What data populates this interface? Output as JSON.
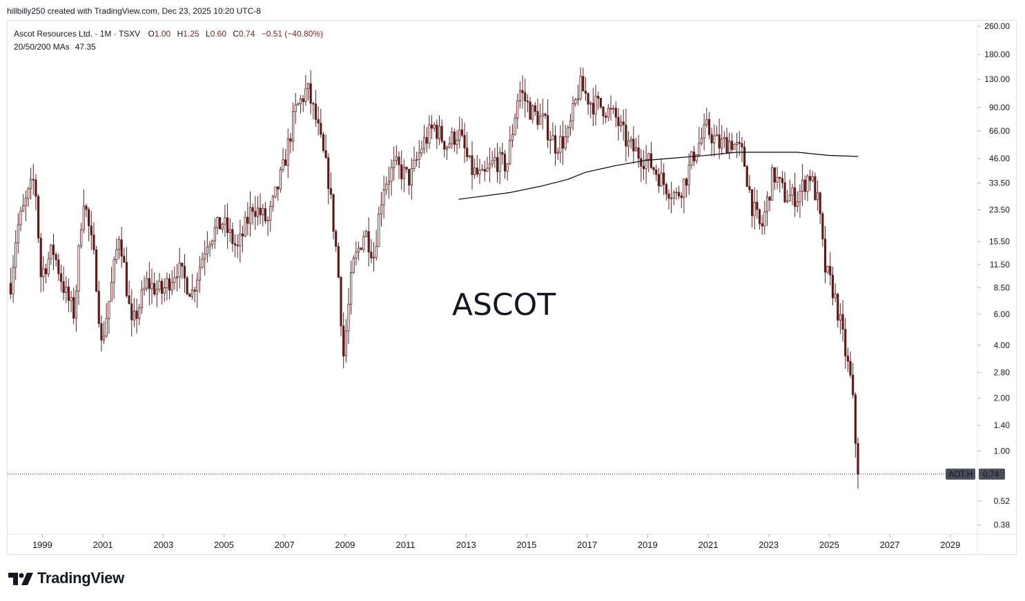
{
  "header": {
    "credit": "hillbilly250 created with TradingView.com, Dec 23, 2025 10:20 UTC-8"
  },
  "legend": {
    "symbol": "Ascot Resources Ltd. · 1M · TSXV",
    "o_label": "O",
    "o_value": "1.00",
    "h_label": "H",
    "h_value": "1.25",
    "l_label": "L",
    "l_value": "0.60",
    "c_label": "C",
    "c_value": "0.74",
    "change": "−0.51 (−40.80%)",
    "ma_label": "20/50/200 MAs",
    "ma_value": "47.35"
  },
  "watermark": "ASCOT",
  "price_tag": {
    "ticker": "AOT.H",
    "price": "0.74"
  },
  "brand": "TradingView",
  "colors": {
    "candle": "#5d1a1a",
    "ma": "#000000",
    "tag": "#4a4e59",
    "grid": "#e0e3eb"
  },
  "chart_data": {
    "type": "candlestick",
    "scale": "log",
    "ylim": [
      0.34,
      280
    ],
    "xlim": [
      1997.9,
      2029.9
    ],
    "y_ticks": [
      "260.00",
      "180.00",
      "130.00",
      "90.00",
      "66.00",
      "46.00",
      "33.50",
      "23.50",
      "15.50",
      "11.50",
      "8.50",
      "6.00",
      "4.00",
      "2.80",
      "2.00",
      "1.40",
      "1.00",
      "0.52",
      "0.38"
    ],
    "x_ticks": [
      "1999",
      "2001",
      "2003",
      "2005",
      "2007",
      "2009",
      "2011",
      "2013",
      "2015",
      "2017",
      "2019",
      "2021",
      "2023",
      "2025",
      "2027",
      "2029"
    ],
    "last_price": 0.74,
    "price_keypoints": [
      [
        1998.0,
        9
      ],
      [
        1998.2,
        18
      ],
      [
        1998.5,
        26
      ],
      [
        1998.8,
        36
      ],
      [
        1999.0,
        10
      ],
      [
        1999.4,
        14
      ],
      [
        1999.8,
        8
      ],
      [
        2000.1,
        6
      ],
      [
        2000.4,
        29
      ],
      [
        2000.8,
        11
      ],
      [
        2001.0,
        4
      ],
      [
        2001.3,
        8
      ],
      [
        2001.6,
        18
      ],
      [
        2002.0,
        5
      ],
      [
        2002.5,
        9
      ],
      [
        2003.0,
        8
      ],
      [
        2003.5,
        11
      ],
      [
        2004.0,
        8
      ],
      [
        2004.5,
        16
      ],
      [
        2005.0,
        20
      ],
      [
        2005.5,
        14
      ],
      [
        2006.0,
        25
      ],
      [
        2006.5,
        20
      ],
      [
        2007.0,
        40
      ],
      [
        2007.4,
        85
      ],
      [
        2007.8,
        115
      ],
      [
        2008.1,
        75
      ],
      [
        2008.5,
        35
      ],
      [
        2008.8,
        12
      ],
      [
        2009.0,
        3.5
      ],
      [
        2009.3,
        11
      ],
      [
        2009.7,
        18
      ],
      [
        2010.0,
        13
      ],
      [
        2010.3,
        32
      ],
      [
        2010.7,
        42
      ],
      [
        2011.2,
        35
      ],
      [
        2011.6,
        55
      ],
      [
        2012.0,
        70
      ],
      [
        2012.4,
        55
      ],
      [
        2012.8,
        65
      ],
      [
        2013.2,
        40
      ],
      [
        2013.6,
        35
      ],
      [
        2014.0,
        45
      ],
      [
        2014.4,
        42
      ],
      [
        2014.8,
        115
      ],
      [
        2015.2,
        85
      ],
      [
        2015.6,
        75
      ],
      [
        2016.0,
        55
      ],
      [
        2016.4,
        60
      ],
      [
        2016.8,
        120
      ],
      [
        2017.2,
        95
      ],
      [
        2017.6,
        90
      ],
      [
        2018.0,
        78
      ],
      [
        2018.4,
        55
      ],
      [
        2018.8,
        48
      ],
      [
        2019.2,
        42
      ],
      [
        2019.6,
        33
      ],
      [
        2020.0,
        28
      ],
      [
        2020.3,
        35
      ],
      [
        2020.6,
        50
      ],
      [
        2021.0,
        68
      ],
      [
        2021.4,
        55
      ],
      [
        2021.8,
        58
      ],
      [
        2022.2,
        48
      ],
      [
        2022.5,
        25
      ],
      [
        2022.8,
        18
      ],
      [
        2023.2,
        38
      ],
      [
        2023.6,
        28
      ],
      [
        2024.0,
        28
      ],
      [
        2024.4,
        38
      ],
      [
        2024.7,
        25
      ],
      [
        2024.9,
        11
      ],
      [
        2025.2,
        8
      ],
      [
        2025.4,
        5.5
      ],
      [
        2025.6,
        3.5
      ],
      [
        2025.8,
        2.3
      ],
      [
        2025.9,
        1.25
      ],
      [
        2026.0,
        0.74
      ]
    ],
    "ma_keypoints": [
      [
        2012.8,
        27
      ],
      [
        2013.5,
        28
      ],
      [
        2014.5,
        29.5
      ],
      [
        2015.5,
        32
      ],
      [
        2016.4,
        35
      ],
      [
        2017.0,
        38.5
      ],
      [
        2018.0,
        42
      ],
      [
        2019.0,
        45
      ],
      [
        2020.0,
        46.5
      ],
      [
        2021.0,
        48
      ],
      [
        2022.0,
        50
      ],
      [
        2023.0,
        50
      ],
      [
        2024.0,
        50
      ],
      [
        2025.0,
        48
      ],
      [
        2026.0,
        47.35
      ]
    ]
  }
}
